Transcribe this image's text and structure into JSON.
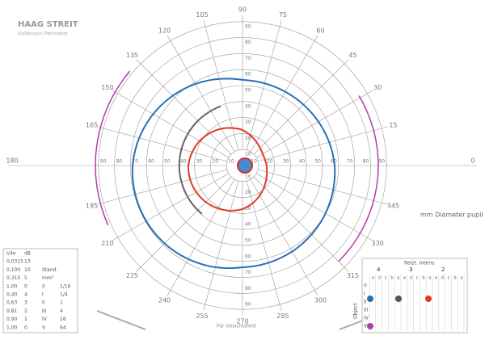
{
  "header": {
    "brand": "HAAG STREIT",
    "subtitle": "Goldmann Perimeter"
  },
  "angle_labels": [
    "0",
    "15",
    "30",
    "45",
    "60",
    "75",
    "90",
    "105",
    "120",
    "135",
    "150",
    "165",
    "180",
    "195",
    "210",
    "225",
    "240",
    "255",
    "270",
    "285",
    "300",
    "315",
    "330",
    "345"
  ],
  "radius_labels": [
    "10",
    "20",
    "30",
    "40",
    "50",
    "60",
    "70",
    "80",
    "90"
  ],
  "pupil_label": "mm   Diameter pupil",
  "bottom_caption": "Für Gesichtsfeld",
  "table": {
    "rows": [
      [
        "I/4e",
        "dB"
      ],
      [
        "0,0315",
        "13"
      ],
      [
        "0,100",
        "10",
        "Stand."
      ],
      [
        "0,315",
        "5",
        "mm²"
      ],
      [
        "1,00",
        "0",
        "0",
        "1/16"
      ],
      [
        "0,40",
        "4",
        "I",
        "1/4"
      ],
      [
        "0,63",
        "3",
        "II",
        "1"
      ],
      [
        "0,81",
        "2",
        "III",
        "4"
      ],
      [
        "0,90",
        "1",
        "IV",
        "16"
      ],
      [
        "1,00",
        "0",
        "V",
        "64"
      ]
    ]
  },
  "stimulus_box": {
    "title": "Reizt. Intens.",
    "columns": [
      "4",
      "3",
      "2"
    ],
    "letters": [
      "e",
      "d",
      "c",
      "b",
      "a",
      "e",
      "d",
      "c",
      "b",
      "a",
      "e",
      "d",
      "c",
      "b",
      "a"
    ],
    "object_label": "Object",
    "rows": [
      "0",
      "I",
      "II",
      "III",
      "IV",
      "V"
    ]
  }
}
